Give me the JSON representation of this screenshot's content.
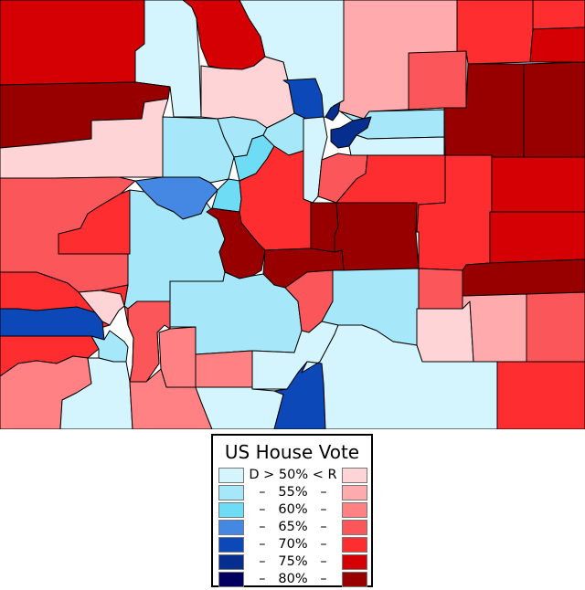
{
  "legend": {
    "title": "US House Vote",
    "rows": [
      {
        "label": "D > 50% < R",
        "d_color": "#d4f4fe",
        "r_color": "#ffd4d6"
      },
      {
        "label": "–   55%   –",
        "d_color": "#a6e8f9",
        "r_color": "#ffaaad"
      },
      {
        "label": "–   60%   –",
        "d_color": "#6fdcf5",
        "r_color": "#ff8184"
      },
      {
        "label": "–   65%   –",
        "d_color": "#4488e4",
        "r_color": "#fb5659"
      },
      {
        "label": "–   70%   –",
        "d_color": "#0d48b8",
        "r_color": "#fe2d2f"
      },
      {
        "label": "–   75%   –",
        "d_color": "#062e8e",
        "r_color": "#d50003"
      },
      {
        "label": "–   80%   –",
        "d_color": "#010060",
        "r_color": "#980000"
      }
    ]
  },
  "counties": [
    {
      "id": "moffat",
      "color": "#d50003"
    },
    {
      "id": "routt",
      "color": "#d4f4fe"
    },
    {
      "id": "jackson",
      "color": "#d50003"
    },
    {
      "id": "larimer",
      "color": "#d4f4fe"
    },
    {
      "id": "weld",
      "color": "#ffaaad"
    },
    {
      "id": "logan",
      "color": "#fe2d2f"
    },
    {
      "id": "sedgwick",
      "color": "#fe2d2f"
    },
    {
      "id": "phillips",
      "color": "#d50003"
    },
    {
      "id": "rio-blanco",
      "color": "#980000"
    },
    {
      "id": "grand",
      "color": "#ffd4d6"
    },
    {
      "id": "boulder",
      "color": "#0d48b8"
    },
    {
      "id": "morgan",
      "color": "#fb5659"
    },
    {
      "id": "washington",
      "color": "#980000"
    },
    {
      "id": "yuma",
      "color": "#980000"
    },
    {
      "id": "garfield",
      "color": "#ffd4d6"
    },
    {
      "id": "eagle",
      "color": "#a6e8f9"
    },
    {
      "id": "summit",
      "color": "#a6e8f9"
    },
    {
      "id": "clear-creek",
      "color": "#6fdcf5"
    },
    {
      "id": "gilpin",
      "color": "#a6e8f9"
    },
    {
      "id": "jefferson",
      "color": "#d4f4fe"
    },
    {
      "id": "broomfield",
      "color": "#062e8e"
    },
    {
      "id": "denver",
      "color": "#062e8e"
    },
    {
      "id": "adams",
      "color": "#a6e8f9"
    },
    {
      "id": "arapahoe",
      "color": "#d4f4fe"
    },
    {
      "id": "douglas",
      "color": "#fb5659"
    },
    {
      "id": "elbert",
      "color": "#fe2d2f"
    },
    {
      "id": "kit-carson",
      "color": "#fe2d2f"
    },
    {
      "id": "lincoln",
      "color": "#d50003"
    },
    {
      "id": "cheyenne",
      "color": "#d50003"
    },
    {
      "id": "mesa",
      "color": "#fb5659"
    },
    {
      "id": "pitkin",
      "color": "#4488e4"
    },
    {
      "id": "lake",
      "color": "#6fdcf5"
    },
    {
      "id": "park",
      "color": "#fe2d2f"
    },
    {
      "id": "teller",
      "color": "#980000"
    },
    {
      "id": "el-paso",
      "color": "#980000"
    },
    {
      "id": "delta",
      "color": "#fe2d2f"
    },
    {
      "id": "gunnison",
      "color": "#a6e8f9"
    },
    {
      "id": "chaffee",
      "color": "#980000"
    },
    {
      "id": "fremont",
      "color": "#980000"
    },
    {
      "id": "crowley",
      "color": "#fb5659"
    },
    {
      "id": "kiowa",
      "color": "#980000"
    },
    {
      "id": "montrose",
      "color": "#fe2d2f"
    },
    {
      "id": "ouray",
      "color": "#ffd4d6"
    },
    {
      "id": "san-miguel",
      "color": "#0d48b8"
    },
    {
      "id": "hinsdale",
      "color": "#fb5659"
    },
    {
      "id": "saguache",
      "color": "#a6e8f9"
    },
    {
      "id": "custer",
      "color": "#fb5659"
    },
    {
      "id": "pueblo",
      "color": "#a6e8f9"
    },
    {
      "id": "otero",
      "color": "#ffd4d6"
    },
    {
      "id": "bent",
      "color": "#ffaaad"
    },
    {
      "id": "prowers",
      "color": "#fb5659"
    },
    {
      "id": "dolores",
      "color": "#fe2d2f"
    },
    {
      "id": "san-juan",
      "color": "#a6e8f9"
    },
    {
      "id": "mineral",
      "color": "#fb5659"
    },
    {
      "id": "rio-grande",
      "color": "#ff8184"
    },
    {
      "id": "alamosa",
      "color": "#ff8184"
    },
    {
      "id": "huerfano",
      "color": "#d4f4fe"
    },
    {
      "id": "montezuma",
      "color": "#ff8184"
    },
    {
      "id": "la-plata",
      "color": "#d4f4fe"
    },
    {
      "id": "archuleta",
      "color": "#ff8184"
    },
    {
      "id": "conejos",
      "color": "#d4f4fe"
    },
    {
      "id": "costilla",
      "color": "#0d48b8"
    },
    {
      "id": "las-animas",
      "color": "#d4f4fe"
    },
    {
      "id": "baca",
      "color": "#fe2d2f"
    }
  ]
}
